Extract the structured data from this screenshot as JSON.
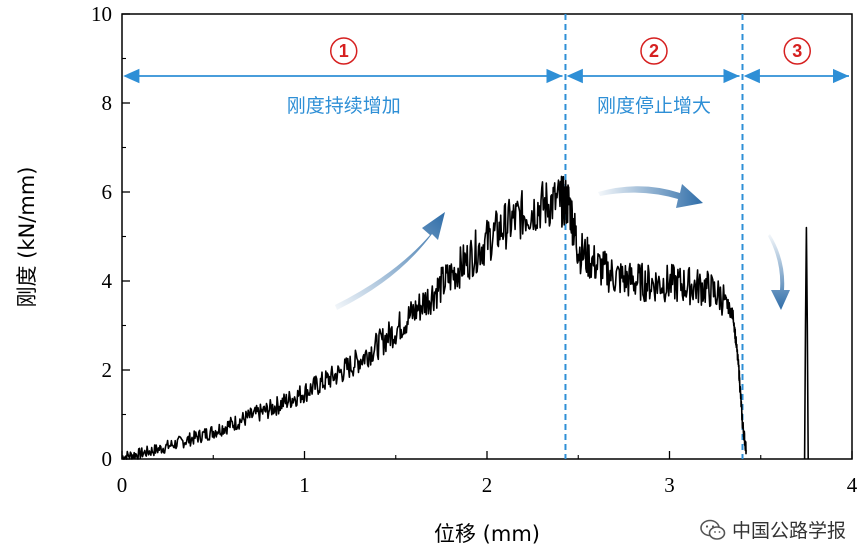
{
  "chart_data": {
    "type": "line",
    "xlabel": "位移 (mm)",
    "ylabel": "刚度 (kN/mm)",
    "xlim": [
      0,
      4
    ],
    "ylim": [
      0,
      10
    ],
    "xticks": [
      0,
      1,
      2,
      3,
      4
    ],
    "yticks": [
      0,
      2,
      4,
      6,
      8,
      10
    ],
    "grid": false,
    "series": [
      {
        "color": "#000000",
        "x": [
          0.0,
          0.1,
          0.2,
          0.3,
          0.4,
          0.5,
          0.6,
          0.7,
          0.8,
          0.9,
          1.0,
          1.1,
          1.2,
          1.3,
          1.4,
          1.5,
          1.6,
          1.7,
          1.8,
          1.9,
          2.0,
          2.1,
          2.2,
          2.3,
          2.4,
          2.45,
          2.5,
          2.6,
          2.7,
          2.8,
          2.9,
          3.0,
          3.1,
          3.2,
          3.3,
          3.35,
          3.38,
          3.4,
          3.42
        ],
        "y": [
          0.05,
          0.12,
          0.22,
          0.35,
          0.48,
          0.62,
          0.78,
          0.95,
          1.1,
          1.3,
          1.5,
          1.72,
          1.95,
          2.22,
          2.55,
          2.9,
          3.3,
          3.7,
          4.1,
          4.5,
          4.9,
          5.25,
          5.5,
          5.7,
          5.8,
          5.75,
          4.7,
          4.35,
          4.1,
          4.0,
          3.95,
          3.95,
          3.9,
          3.85,
          3.6,
          3.2,
          2.0,
          0.8,
          0.2
        ]
      },
      {
        "color": "#000000",
        "x": [
          3.74,
          3.745,
          3.75,
          3.755,
          3.76
        ],
        "y": [
          0,
          3.0,
          5.2,
          3.0,
          0
        ]
      }
    ],
    "boundaries": [
      2.43,
      3.4
    ],
    "stages": [
      {
        "number": "1",
        "label": "刚度持续增加"
      },
      {
        "number": "2",
        "label": "刚度停止增大"
      },
      {
        "number": "3",
        "label": ""
      }
    ],
    "accent_color": "#2e8fd6",
    "stage_number_color": "#d62020",
    "arrow_color": "#2f6da8"
  },
  "watermark": {
    "text": "中国公路学报",
    "icon": "wechat-icon"
  }
}
